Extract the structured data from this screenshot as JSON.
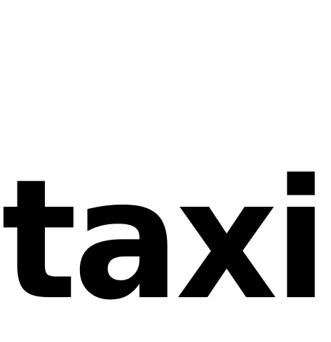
{
  "word": "taxi",
  "colors": {
    "background": "#ffffff",
    "text": "#000000"
  }
}
